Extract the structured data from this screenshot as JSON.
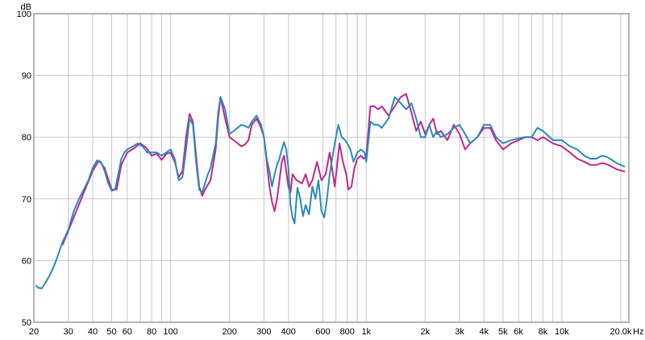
{
  "chart_data": {
    "type": "line",
    "x_scale": "log",
    "xlim": [
      20,
      22000
    ],
    "ylim": [
      50,
      100
    ],
    "x_unit": "Hz",
    "y_unit": "dB",
    "grid": true,
    "y_ticks": [
      {
        "value": 50,
        "label": "50"
      },
      {
        "value": 60,
        "label": "60"
      },
      {
        "value": 70,
        "label": "70"
      },
      {
        "value": 80,
        "label": "80"
      },
      {
        "value": 90,
        "label": "90"
      },
      {
        "value": 100,
        "label": "100"
      }
    ],
    "x_ticks": [
      {
        "value": 20,
        "label": "20"
      },
      {
        "value": 30,
        "label": "30"
      },
      {
        "value": 40,
        "label": "40"
      },
      {
        "value": 50,
        "label": "50"
      },
      {
        "value": 60,
        "label": "60"
      },
      {
        "value": 80,
        "label": "80"
      },
      {
        "value": 100,
        "label": "100"
      },
      {
        "value": 200,
        "label": "200"
      },
      {
        "value": 300,
        "label": "300"
      },
      {
        "value": 400,
        "label": "400"
      },
      {
        "value": 600,
        "label": "600"
      },
      {
        "value": 800,
        "label": "800"
      },
      {
        "value": 1000,
        "label": "1k"
      },
      {
        "value": 2000,
        "label": "2k"
      },
      {
        "value": 3000,
        "label": "3k"
      },
      {
        "value": 4000,
        "label": "4k"
      },
      {
        "value": 5000,
        "label": "5k"
      },
      {
        "value": 6000,
        "label": "6k"
      },
      {
        "value": 8000,
        "label": "8k"
      },
      {
        "value": 10000,
        "label": "10k"
      },
      {
        "value": 20000,
        "label": "20.0k"
      }
    ],
    "minor_gridlines": [
      70,
      90,
      700,
      900,
      7000,
      9000
    ],
    "colors": {
      "grid": "#c8c8c8",
      "frame": "#b4b4b4"
    },
    "series": [
      {
        "color": "#c2278f",
        "points": [
          [
            28,
            62.5
          ],
          [
            32,
            67
          ],
          [
            36,
            71
          ],
          [
            40,
            74.5
          ],
          [
            43,
            76.2
          ],
          [
            46,
            75
          ],
          [
            50,
            71.5
          ],
          [
            53,
            71.5
          ],
          [
            56,
            75.5
          ],
          [
            60,
            77.5
          ],
          [
            65,
            78.2
          ],
          [
            70,
            79
          ],
          [
            75,
            78.3
          ],
          [
            80,
            77
          ],
          [
            85,
            77.3
          ],
          [
            90,
            76.3
          ],
          [
            95,
            77.3
          ],
          [
            100,
            77.5
          ],
          [
            105,
            76
          ],
          [
            110,
            73.5
          ],
          [
            115,
            74.5
          ],
          [
            120,
            80
          ],
          [
            125,
            83.8
          ],
          [
            130,
            82.5
          ],
          [
            135,
            77
          ],
          [
            140,
            72
          ],
          [
            145,
            70.5
          ],
          [
            150,
            71.5
          ],
          [
            160,
            73
          ],
          [
            170,
            78
          ],
          [
            175,
            83
          ],
          [
            180,
            86.5
          ],
          [
            190,
            83
          ],
          [
            200,
            80
          ],
          [
            210,
            79.5
          ],
          [
            220,
            79
          ],
          [
            230,
            78.5
          ],
          [
            240,
            78.8
          ],
          [
            250,
            79.5
          ],
          [
            260,
            82
          ],
          [
            275,
            83
          ],
          [
            290,
            81.5
          ],
          [
            300,
            80
          ],
          [
            310,
            76
          ],
          [
            320,
            72
          ],
          [
            330,
            69.5
          ],
          [
            340,
            68
          ],
          [
            350,
            70
          ],
          [
            360,
            73
          ],
          [
            370,
            76
          ],
          [
            380,
            77
          ],
          [
            400,
            72
          ],
          [
            410,
            71
          ],
          [
            420,
            74
          ],
          [
            440,
            73
          ],
          [
            470,
            72.5
          ],
          [
            490,
            74
          ],
          [
            510,
            72
          ],
          [
            530,
            73
          ],
          [
            560,
            76
          ],
          [
            590,
            73
          ],
          [
            620,
            74
          ],
          [
            650,
            77.5
          ],
          [
            690,
            72
          ],
          [
            730,
            79
          ],
          [
            760,
            76
          ],
          [
            790,
            74
          ],
          [
            810,
            71.5
          ],
          [
            840,
            72
          ],
          [
            870,
            75
          ],
          [
            900,
            76.5
          ],
          [
            940,
            77
          ],
          [
            970,
            76.5
          ],
          [
            1000,
            77
          ],
          [
            1050,
            85
          ],
          [
            1100,
            85
          ],
          [
            1150,
            84.5
          ],
          [
            1200,
            85
          ],
          [
            1300,
            83.5
          ],
          [
            1400,
            85
          ],
          [
            1500,
            86.5
          ],
          [
            1600,
            87
          ],
          [
            1700,
            84
          ],
          [
            1800,
            81
          ],
          [
            1900,
            82.5
          ],
          [
            2000,
            80.5
          ],
          [
            2100,
            82
          ],
          [
            2200,
            83
          ],
          [
            2300,
            80.5
          ],
          [
            2400,
            81
          ],
          [
            2600,
            79.5
          ],
          [
            2800,
            82
          ],
          [
            3000,
            80.5
          ],
          [
            3200,
            78
          ],
          [
            3400,
            79
          ],
          [
            3700,
            80
          ],
          [
            4000,
            81.5
          ],
          [
            4300,
            81.5
          ],
          [
            4600,
            79.5
          ],
          [
            5000,
            78
          ],
          [
            5500,
            79
          ],
          [
            6000,
            79.5
          ],
          [
            6500,
            80
          ],
          [
            7000,
            80
          ],
          [
            7500,
            79.5
          ],
          [
            8000,
            80
          ],
          [
            9000,
            79
          ],
          [
            10000,
            78.5
          ],
          [
            11000,
            77.5
          ],
          [
            12000,
            76.5
          ],
          [
            13000,
            76
          ],
          [
            14000,
            75.5
          ],
          [
            15000,
            75.5
          ],
          [
            16000,
            75.8
          ],
          [
            17000,
            75.6
          ],
          [
            18000,
            75.2
          ],
          [
            19000,
            74.8
          ],
          [
            20000,
            74.6
          ],
          [
            21000,
            74.4
          ]
        ]
      },
      {
        "color": "#2c8ab8",
        "points": [
          [
            20.5,
            56
          ],
          [
            21,
            55.6
          ],
          [
            22,
            55.5
          ],
          [
            23,
            56.5
          ],
          [
            24,
            57.5
          ],
          [
            25,
            58.7
          ],
          [
            26,
            60
          ],
          [
            27,
            61.5
          ],
          [
            28,
            63
          ],
          [
            29,
            64
          ],
          [
            30,
            65
          ],
          [
            32,
            68
          ],
          [
            34,
            70
          ],
          [
            36,
            71.5
          ],
          [
            38,
            73
          ],
          [
            40,
            75
          ],
          [
            42,
            76.2
          ],
          [
            44,
            76
          ],
          [
            46,
            74.5
          ],
          [
            48,
            72.5
          ],
          [
            50,
            71.3
          ],
          [
            52,
            71.5
          ],
          [
            54,
            74
          ],
          [
            56,
            76.5
          ],
          [
            58,
            77.5
          ],
          [
            60,
            78
          ],
          [
            64,
            78.5
          ],
          [
            68,
            79
          ],
          [
            72,
            78.5
          ],
          [
            76,
            77.5
          ],
          [
            80,
            77.5
          ],
          [
            85,
            77.5
          ],
          [
            90,
            77
          ],
          [
            95,
            77.5
          ],
          [
            100,
            78
          ],
          [
            105,
            76.5
          ],
          [
            110,
            73
          ],
          [
            115,
            73.5
          ],
          [
            120,
            78
          ],
          [
            125,
            83
          ],
          [
            130,
            82
          ],
          [
            135,
            76
          ],
          [
            140,
            71.5
          ],
          [
            145,
            71
          ],
          [
            150,
            72.5
          ],
          [
            155,
            74
          ],
          [
            160,
            75
          ],
          [
            170,
            79
          ],
          [
            175,
            84
          ],
          [
            180,
            86.5
          ],
          [
            190,
            84.5
          ],
          [
            200,
            80.5
          ],
          [
            210,
            81
          ],
          [
            220,
            81.5
          ],
          [
            230,
            82
          ],
          [
            240,
            81.8
          ],
          [
            250,
            81.5
          ],
          [
            260,
            82.5
          ],
          [
            275,
            83.5
          ],
          [
            290,
            82
          ],
          [
            300,
            80
          ],
          [
            310,
            76.5
          ],
          [
            320,
            74.5
          ],
          [
            330,
            72
          ],
          [
            340,
            74
          ],
          [
            350,
            75.5
          ],
          [
            360,
            76.5
          ],
          [
            370,
            78
          ],
          [
            380,
            79.2
          ],
          [
            390,
            78
          ],
          [
            400,
            75
          ],
          [
            410,
            69
          ],
          [
            420,
            67
          ],
          [
            430,
            66
          ],
          [
            445,
            71.8
          ],
          [
            460,
            70
          ],
          [
            475,
            67.2
          ],
          [
            490,
            69
          ],
          [
            510,
            67.5
          ],
          [
            530,
            72
          ],
          [
            550,
            70
          ],
          [
            570,
            73
          ],
          [
            590,
            68
          ],
          [
            610,
            67
          ],
          [
            630,
            70
          ],
          [
            650,
            74
          ],
          [
            690,
            79
          ],
          [
            720,
            82
          ],
          [
            750,
            80
          ],
          [
            780,
            79.5
          ],
          [
            800,
            79
          ],
          [
            830,
            78
          ],
          [
            860,
            76
          ],
          [
            900,
            77.5
          ],
          [
            940,
            78
          ],
          [
            980,
            77.5
          ],
          [
            1000,
            76
          ],
          [
            1050,
            82.5
          ],
          [
            1100,
            82
          ],
          [
            1150,
            82
          ],
          [
            1200,
            81.5
          ],
          [
            1300,
            83
          ],
          [
            1400,
            86.5
          ],
          [
            1500,
            85.5
          ],
          [
            1600,
            84.5
          ],
          [
            1700,
            85.5
          ],
          [
            1800,
            83
          ],
          [
            1900,
            80
          ],
          [
            2000,
            80
          ],
          [
            2100,
            82
          ],
          [
            2200,
            80
          ],
          [
            2300,
            81
          ],
          [
            2400,
            80
          ],
          [
            2600,
            80.5
          ],
          [
            2800,
            81.5
          ],
          [
            3000,
            82
          ],
          [
            3200,
            80.5
          ],
          [
            3400,
            79
          ],
          [
            3700,
            80
          ],
          [
            4000,
            82
          ],
          [
            4300,
            82
          ],
          [
            4600,
            80
          ],
          [
            5000,
            79
          ],
          [
            5500,
            79.5
          ],
          [
            6000,
            79.8
          ],
          [
            6500,
            80
          ],
          [
            7000,
            80
          ],
          [
            7500,
            81.5
          ],
          [
            8000,
            81
          ],
          [
            9000,
            79.5
          ],
          [
            10000,
            79.5
          ],
          [
            11000,
            78.5
          ],
          [
            12000,
            78
          ],
          [
            13000,
            77
          ],
          [
            14000,
            76.5
          ],
          [
            15000,
            76.5
          ],
          [
            16000,
            77
          ],
          [
            17000,
            76.8
          ],
          [
            18000,
            76.3
          ],
          [
            19000,
            75.8
          ],
          [
            20000,
            75.5
          ],
          [
            21000,
            75.2
          ]
        ]
      }
    ]
  }
}
